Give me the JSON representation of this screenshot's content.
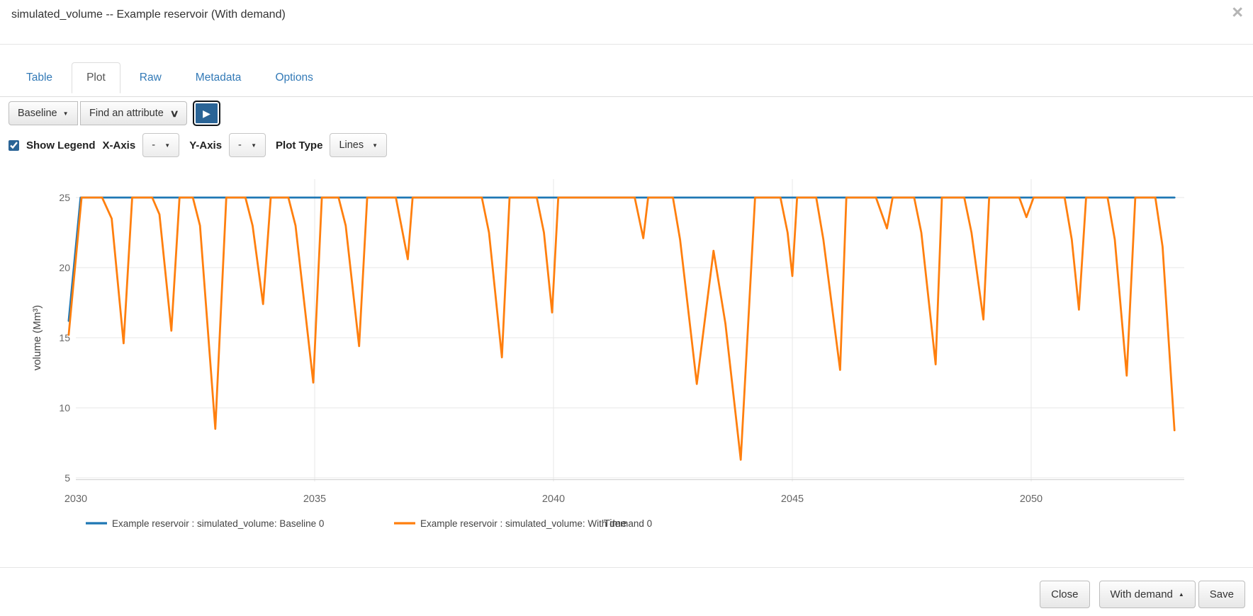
{
  "modal": {
    "title": "simulated_volume -- Example reservoir (With demand)"
  },
  "icons": {
    "close": "×",
    "caret_down": "▼",
    "caret_up": "▲",
    "chevron_down": "∨",
    "play": "▶"
  },
  "tabs": [
    {
      "label": "Table"
    },
    {
      "label": "Plot"
    },
    {
      "label": "Raw"
    },
    {
      "label": "Metadata"
    },
    {
      "label": "Options"
    }
  ],
  "active_tab": "Plot",
  "toolbar": {
    "scenario_button": "Baseline",
    "attribute_button": "Find an attribute"
  },
  "plot_controls": {
    "show_legend_label": "Show Legend",
    "show_legend_checked": true,
    "x_axis_label": "X-Axis",
    "x_axis_value": "-",
    "y_axis_label": "Y-Axis",
    "y_axis_value": "-",
    "plot_type_label": "Plot Type",
    "plot_type_value": "Lines"
  },
  "chart_data": {
    "type": "line",
    "title": "",
    "xlabel": "Time",
    "ylabel": "volume (Mm³)",
    "x_ticks": [
      2030,
      2035,
      2040,
      2045,
      2050
    ],
    "y_ticks": [
      5,
      10,
      15,
      20,
      25
    ],
    "xlim": [
      2029.85,
      2053.2
    ],
    "ylim": [
      4.9,
      26.5
    ],
    "grid": true,
    "legend_position": "bottom",
    "series": [
      {
        "name": "Example reservoir : simulated_volume: Baseline 0",
        "color": "#1f77b4",
        "points": [
          [
            2029.85,
            16.2
          ],
          [
            2030.1,
            25
          ],
          [
            2053.0,
            25
          ]
        ]
      },
      {
        "name": "Example reservoir : simulated_volume: With demand 0",
        "color": "#ff7f0e",
        "points": [
          [
            2029.85,
            15.2
          ],
          [
            2030.12,
            25
          ],
          [
            2030.55,
            25
          ],
          [
            2030.75,
            23.5
          ],
          [
            2031.0,
            14.6
          ],
          [
            2031.18,
            25
          ],
          [
            2031.6,
            25
          ],
          [
            2031.75,
            23.8
          ],
          [
            2032.0,
            15.5
          ],
          [
            2032.17,
            25
          ],
          [
            2032.45,
            25
          ],
          [
            2032.6,
            23.0
          ],
          [
            2032.92,
            8.5
          ],
          [
            2033.15,
            25
          ],
          [
            2033.55,
            25
          ],
          [
            2033.7,
            23.0
          ],
          [
            2033.92,
            17.4
          ],
          [
            2034.08,
            25
          ],
          [
            2034.45,
            25
          ],
          [
            2034.6,
            23.0
          ],
          [
            2034.97,
            11.8
          ],
          [
            2035.15,
            25
          ],
          [
            2035.5,
            25
          ],
          [
            2035.65,
            23.0
          ],
          [
            2035.93,
            14.4
          ],
          [
            2036.1,
            25
          ],
          [
            2036.7,
            25
          ],
          [
            2036.95,
            20.6
          ],
          [
            2037.05,
            25
          ],
          [
            2038.5,
            25
          ],
          [
            2038.65,
            22.5
          ],
          [
            2038.92,
            13.6
          ],
          [
            2039.08,
            25
          ],
          [
            2039.65,
            25
          ],
          [
            2039.8,
            22.5
          ],
          [
            2039.97,
            16.8
          ],
          [
            2040.1,
            25
          ],
          [
            2041.7,
            25
          ],
          [
            2041.88,
            22.1
          ],
          [
            2041.98,
            25
          ],
          [
            2042.5,
            25
          ],
          [
            2042.65,
            22.0
          ],
          [
            2043.0,
            11.7
          ],
          [
            2043.35,
            21.2
          ],
          [
            2043.6,
            16.0
          ],
          [
            2043.92,
            6.3
          ],
          [
            2044.22,
            25
          ],
          [
            2044.75,
            25
          ],
          [
            2044.9,
            22.5
          ],
          [
            2045.0,
            19.4
          ],
          [
            2045.1,
            25
          ],
          [
            2045.5,
            25
          ],
          [
            2045.65,
            22.0
          ],
          [
            2046.0,
            12.7
          ],
          [
            2046.13,
            25
          ],
          [
            2046.75,
            25
          ],
          [
            2046.98,
            22.8
          ],
          [
            2047.1,
            25
          ],
          [
            2047.55,
            25
          ],
          [
            2047.7,
            22.5
          ],
          [
            2048.0,
            13.1
          ],
          [
            2048.13,
            25
          ],
          [
            2048.6,
            25
          ],
          [
            2048.75,
            22.5
          ],
          [
            2049.0,
            16.3
          ],
          [
            2049.12,
            25
          ],
          [
            2049.75,
            25
          ],
          [
            2049.9,
            23.6
          ],
          [
            2050.05,
            25
          ],
          [
            2050.7,
            25
          ],
          [
            2050.85,
            22.0
          ],
          [
            2051.0,
            17.0
          ],
          [
            2051.15,
            25
          ],
          [
            2051.6,
            25
          ],
          [
            2051.75,
            22.0
          ],
          [
            2052.0,
            12.3
          ],
          [
            2052.18,
            25
          ],
          [
            2052.6,
            25
          ],
          [
            2052.75,
            21.5
          ],
          [
            2053.0,
            8.4
          ]
        ]
      }
    ]
  },
  "footer": {
    "close_label": "Close",
    "scenario_label": "With demand",
    "save_label": "Save"
  },
  "colors": {
    "link": "#337ab7",
    "baseline_series": "#1f77b4",
    "demand_series": "#ff7f0e",
    "play_button_bg": "#2a6496",
    "grid_line": "#e7e7e7"
  }
}
